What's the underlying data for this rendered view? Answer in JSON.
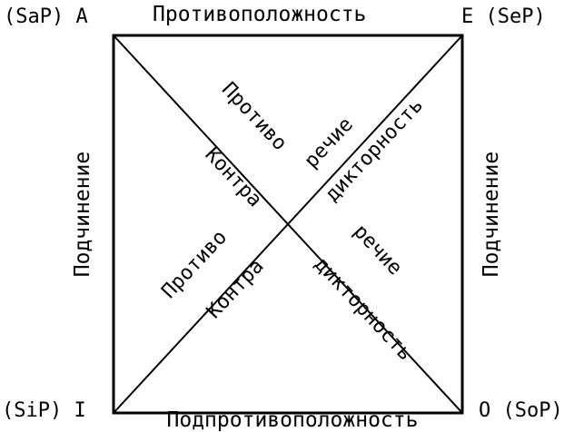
{
  "corners": {
    "top_left": "(SaP) A",
    "top_right": "E (SeP)",
    "bottom_left": "(SiP) I",
    "bottom_right": "O (SoP)"
  },
  "edges": {
    "top": "Противоположность",
    "bottom": "Подпротивоположность",
    "left": "Подчинение",
    "right": "Подчинение"
  },
  "diagonals": {
    "upper_left_a": "Противо",
    "upper_left_b": "речие",
    "upper_right": "дикторность",
    "left_upper": "Контра",
    "right_upper": "дикторность",
    "right_lower": "речие",
    "lower_left_a": "Противо",
    "lower_left_b": "Контра",
    "lower_right": "дикторность"
  },
  "colors": {
    "line": "#000000",
    "text": "#000000",
    "background": "#ffffff"
  }
}
